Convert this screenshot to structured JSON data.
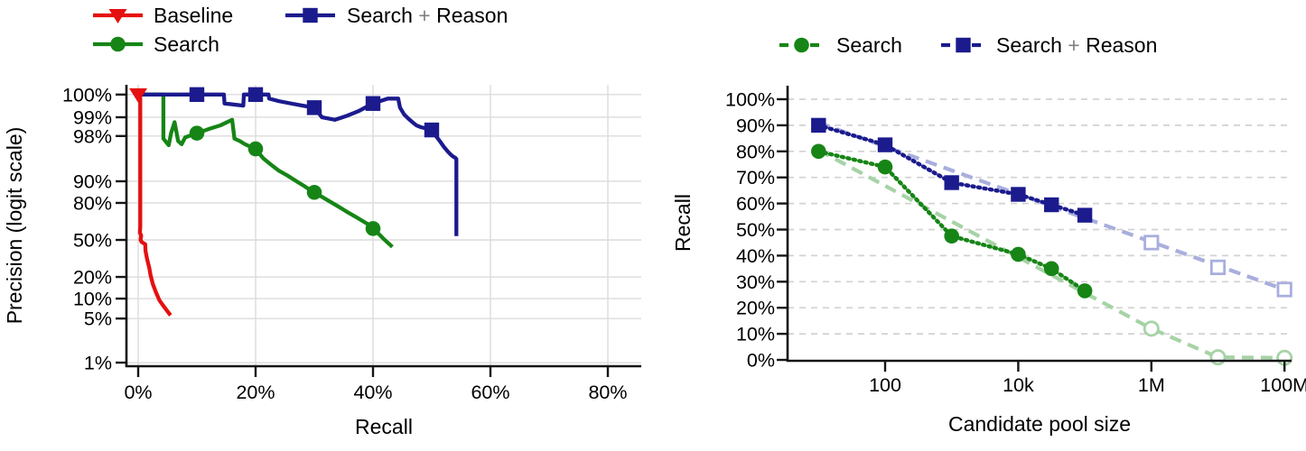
{
  "figure": {
    "background": "#ffffff",
    "text_color": "#000000",
    "grid_color_left": "#dcdcdc",
    "grid_color_right": "#d2d2d2",
    "spine_color": "#151515",
    "plus_sign_color": "#7f7f7f"
  },
  "chart_data": [
    {
      "id": "precision-recall",
      "type": "line",
      "title": "",
      "xlabel": "Recall",
      "ylabel": "Precision (logit scale)",
      "x_scale": "linear",
      "y_scale": "logit",
      "grid": "full",
      "legend_position": "top-left",
      "x_tick_labels": [
        "0%",
        "20%",
        "40%",
        "60%",
        "80%"
      ],
      "x_tick_values": [
        0,
        20,
        40,
        60,
        80
      ],
      "y_tick_labels": [
        "100%",
        "99%",
        "98%",
        "90%",
        "80%",
        "50%",
        "20%",
        "10%",
        "5%",
        "1%"
      ],
      "y_tick_values": [
        100,
        99,
        98,
        90,
        80,
        50,
        20,
        10,
        5,
        1
      ],
      "xlim": [
        -2,
        86
      ],
      "ylim": [
        1,
        100
      ],
      "legend": [
        {
          "name": "Baseline",
          "row": 0,
          "col": 0
        },
        {
          "name": "Search",
          "row": 1,
          "col": 0
        },
        {
          "name": "Search + Reason",
          "row": 0,
          "col": 1
        }
      ],
      "series": [
        {
          "name": "Baseline",
          "color": "#e51010",
          "line_style": "solid",
          "marker": "triangle-down",
          "marker_filled": true,
          "marker_points": [
            [
              0,
              100
            ]
          ],
          "points": [
            [
              0,
              100
            ],
            [
              0.35,
              100
            ],
            [
              0.35,
              62
            ],
            [
              0.3,
              57
            ],
            [
              0.5,
              54
            ],
            [
              0.4,
              50
            ],
            [
              0.6,
              48
            ],
            [
              1.2,
              46
            ],
            [
              1.25,
              40
            ],
            [
              1.5,
              33
            ],
            [
              1.9,
              26
            ],
            [
              2.1,
              21
            ],
            [
              2.5,
              16
            ],
            [
              3.0,
              12.5
            ],
            [
              3.6,
              9.5
            ],
            [
              4.2,
              8
            ],
            [
              4.8,
              6.8
            ],
            [
              5.5,
              5.6
            ]
          ]
        },
        {
          "name": "Search",
          "color": "#168516",
          "line_style": "solid",
          "marker": "circle",
          "marker_filled": true,
          "marker_points": [
            [
              10,
              98.2
            ],
            [
              20,
              96.8
            ],
            [
              30,
              85.6
            ],
            [
              40,
              60.5
            ]
          ],
          "points": [
            [
              0.2,
              100
            ],
            [
              4.3,
              100
            ],
            [
              4.3,
              97.8
            ],
            [
              5.2,
              97.2
            ],
            [
              5.6,
              98.2
            ],
            [
              6.2,
              98.8
            ],
            [
              6.8,
              97.6
            ],
            [
              7.4,
              97.3
            ],
            [
              8.0,
              97.9
            ],
            [
              9.0,
              98.05
            ],
            [
              10,
              98.2
            ],
            [
              12,
              98.45
            ],
            [
              14,
              98.65
            ],
            [
              16,
              98.9
            ],
            [
              16.4,
              97.8
            ],
            [
              17.3,
              97.6
            ],
            [
              18.2,
              97.3
            ],
            [
              19.1,
              97.05
            ],
            [
              20,
              96.8
            ],
            [
              21.3,
              95.5
            ],
            [
              22.6,
              94.4
            ],
            [
              24,
              93
            ],
            [
              25.4,
              91.8
            ],
            [
              26.8,
              90.2
            ],
            [
              28.2,
              88.4
            ],
            [
              29.2,
              86.8
            ],
            [
              30,
              85.6
            ],
            [
              31.4,
              83.2
            ],
            [
              32.8,
              80.5
            ],
            [
              34.2,
              77.5
            ],
            [
              35.6,
              74
            ],
            [
              37,
              70.5
            ],
            [
              38.4,
              66.5
            ],
            [
              39.4,
              63.5
            ],
            [
              40,
              60.5
            ],
            [
              41,
              55.5
            ],
            [
              41.8,
              51
            ],
            [
              42.6,
              47
            ],
            [
              43.3,
              43.5
            ]
          ]
        },
        {
          "name": "Search + Reason",
          "color": "#1b1b8e",
          "line_style": "solid",
          "marker": "square",
          "marker_filled": true,
          "marker_points": [
            [
              10,
              100
            ],
            [
              20,
              100
            ],
            [
              30,
              99.3
            ],
            [
              40,
              99.4
            ],
            [
              50,
              98.4
            ]
          ],
          "points": [
            [
              0.2,
              100
            ],
            [
              14.6,
              100
            ],
            [
              14.7,
              99.4
            ],
            [
              17.9,
              99.35
            ],
            [
              18.0,
              100
            ],
            [
              22.2,
              100
            ],
            [
              22.3,
              99.5
            ],
            [
              24,
              99.45
            ],
            [
              26,
              99.4
            ],
            [
              28,
              99.35
            ],
            [
              30,
              99.3
            ],
            [
              31.3,
              99.0
            ],
            [
              33.5,
              98.9
            ],
            [
              35.5,
              99.05
            ],
            [
              37.5,
              99.2
            ],
            [
              40,
              99.4
            ],
            [
              42.5,
              99.5
            ],
            [
              44.3,
              99.5
            ],
            [
              44.6,
              99.3
            ],
            [
              45.3,
              99.1
            ],
            [
              46.0,
              98.95
            ],
            [
              46.7,
              98.8
            ],
            [
              47.4,
              98.65
            ],
            [
              48.2,
              98.55
            ],
            [
              50,
              98.4
            ],
            [
              50.8,
              97.95
            ],
            [
              51.5,
              97.5
            ],
            [
              52.1,
              97.0
            ],
            [
              52.7,
              96.5
            ],
            [
              53.2,
              96.1
            ],
            [
              53.6,
              95.8
            ],
            [
              54.0,
              95.6
            ],
            [
              54.2,
              95.4
            ],
            [
              54.2,
              53.5
            ]
          ]
        }
      ]
    },
    {
      "id": "recall-vs-pool-size",
      "type": "line",
      "title": "",
      "xlabel": "Candidate pool size",
      "ylabel": "Recall",
      "x_scale": "log",
      "y_scale": "linear",
      "grid": "horizontal-dashed",
      "legend_position": "top-center",
      "x_tick_labels": [
        "100",
        "10k",
        "1M",
        "100M"
      ],
      "x_tick_values": [
        100,
        10000,
        1000000,
        100000000
      ],
      "y_tick_labels": [
        "0%",
        "10%",
        "20%",
        "30%",
        "40%",
        "50%",
        "60%",
        "70%",
        "80%",
        "90%",
        "100%"
      ],
      "y_tick_values": [
        0,
        10,
        20,
        30,
        40,
        50,
        60,
        70,
        80,
        90,
        100
      ],
      "xlim": [
        4,
        200000000
      ],
      "ylim": [
        0,
        100
      ],
      "legend": [
        {
          "name": "Search"
        },
        {
          "name": "Search + Reason"
        }
      ],
      "series": [
        {
          "name": "Search + Reason (extrapolated)",
          "color": "#a9aede",
          "line_style": "dashed",
          "marker": "square",
          "marker_filled": false,
          "marker_points": [
            [
              1000000,
              45
            ],
            [
              10000000,
              35.5
            ],
            [
              100000000,
              27
            ]
          ],
          "points": [
            [
              10,
              91
            ],
            [
              100000000,
              27
            ]
          ]
        },
        {
          "name": "Search (extrapolated)",
          "color": "#a6d3a6",
          "line_style": "dashed",
          "marker": "circle",
          "marker_filled": false,
          "marker_points": [
            [
              1000000,
              12
            ],
            [
              10000000,
              1.0
            ],
            [
              100000000,
              0.8
            ]
          ],
          "points": [
            [
              10,
              80.5
            ],
            [
              1000000,
              12
            ],
            [
              10000000,
              1.0
            ],
            [
              100000000,
              0.8
            ]
          ]
        },
        {
          "name": "Search + Reason",
          "color": "#1b1b8e",
          "line_style": "dotted",
          "marker": "square",
          "marker_filled": true,
          "marker_points": [
            [
              10,
              90
            ],
            [
              100,
              82.5
            ],
            [
              1000,
              68
            ],
            [
              10000,
              63.5
            ],
            [
              31600,
              59.5
            ],
            [
              100000,
              55.5
            ]
          ],
          "points": [
            [
              10,
              90
            ],
            [
              100,
              82.5
            ],
            [
              1000,
              68
            ],
            [
              10000,
              63.5
            ],
            [
              31600,
              59.5
            ],
            [
              100000,
              55.5
            ]
          ]
        },
        {
          "name": "Search",
          "color": "#168516",
          "line_style": "dotted",
          "marker": "circle",
          "marker_filled": true,
          "marker_points": [
            [
              10,
              80
            ],
            [
              100,
              74
            ],
            [
              1000,
              47.5
            ],
            [
              10000,
              40.5
            ],
            [
              31600,
              35
            ],
            [
              100000,
              26.5
            ]
          ],
          "points": [
            [
              10,
              80
            ],
            [
              100,
              74
            ],
            [
              1000,
              47.5
            ],
            [
              10000,
              40.5
            ],
            [
              31600,
              35
            ],
            [
              100000,
              26.5
            ]
          ]
        }
      ]
    }
  ]
}
